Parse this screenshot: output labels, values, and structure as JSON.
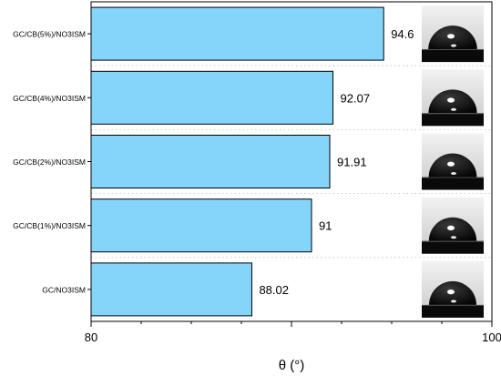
{
  "chart_data": {
    "type": "bar",
    "orientation": "horizontal",
    "categories": [
      "GC/CB(5%)/NO3ISM",
      "GC/CB(4%)/NO3ISM",
      "GC/CB(2%)/NO3ISM",
      "GC/CB(1%)/NO3ISM",
      "GC/NO3ISM"
    ],
    "values": [
      94.6,
      92.07,
      91.91,
      91,
      88.02
    ],
    "value_labels": [
      "94.6",
      "92.07",
      "91.91",
      "91",
      "88.02"
    ],
    "xlim": [
      80,
      100
    ],
    "x_ticks": [
      "80",
      "100"
    ],
    "xlabel": "θ (°)",
    "ylabel": "",
    "title": "",
    "bar_color": "#85d5fb",
    "bar_edge_color": "#000000",
    "grid": "dotted horizontal separators",
    "legend": "none",
    "insets": "droplet contact-angle photo to the right of each bar"
  }
}
